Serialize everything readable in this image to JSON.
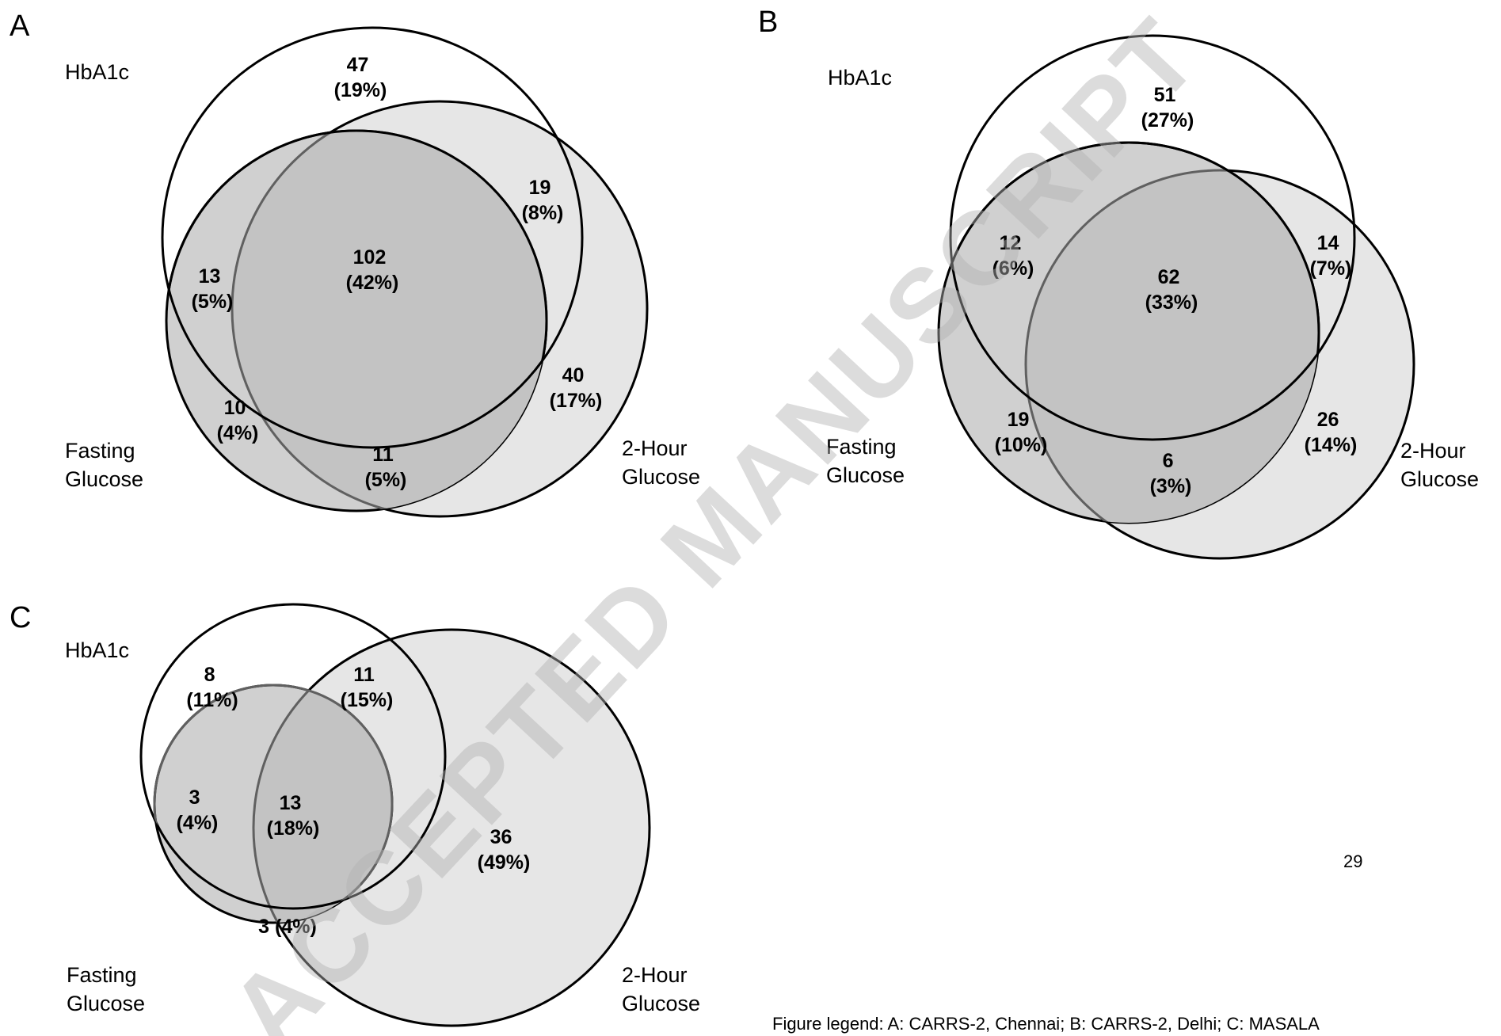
{
  "watermark": "ACCEPTED MANUSCRIPT",
  "page_number": "29",
  "legend": "Figure legend:  A: CARRS-2, Chennai; B:  CARRS-2, Delhi; C: MASALA",
  "colors": {
    "outline": "#000000",
    "fasting_fill": "#d0d0d0",
    "twohour_fill": "#e6e6e6",
    "overlap_fill": "#c3c3c3",
    "watermark": "#b3b3b3"
  },
  "panels": [
    {
      "letter": "A",
      "labels": {
        "hba1c": "HbA1c",
        "fasting": [
          "Fasting",
          "Glucose"
        ],
        "twohour": [
          "2-Hour",
          "Glucose"
        ]
      },
      "regions": {
        "hba1c_only": {
          "n": "47",
          "pct": "(19%)"
        },
        "hba1c_2h": {
          "n": "19",
          "pct": "(8%)"
        },
        "hba1c_fast": {
          "n": "13",
          "pct": "(5%)"
        },
        "all_three": {
          "n": "102",
          "pct": "(42%)"
        },
        "twohour_only": {
          "n": "40",
          "pct": "(17%)"
        },
        "fasting_only": {
          "n": "10",
          "pct": "(4%)"
        },
        "fast_2h": {
          "n": "11",
          "pct": "(5%)"
        }
      }
    },
    {
      "letter": "B",
      "labels": {
        "hba1c": "HbA1c",
        "fasting": [
          "Fasting",
          "Glucose"
        ],
        "twohour": [
          "2-Hour",
          "Glucose"
        ]
      },
      "regions": {
        "hba1c_only": {
          "n": "51",
          "pct": "(27%)"
        },
        "hba1c_fast": {
          "n": "12",
          "pct": "(6%)"
        },
        "hba1c_2h": {
          "n": "14",
          "pct": "(7%)"
        },
        "all_three": {
          "n": "62",
          "pct": "(33%)"
        },
        "fasting_only": {
          "n": "19",
          "pct": "(10%)"
        },
        "twohour_only": {
          "n": "26",
          "pct": "(14%)"
        },
        "fast_2h": {
          "n": "6",
          "pct": "(3%)"
        }
      }
    },
    {
      "letter": "C",
      "labels": {
        "hba1c": "HbA1c",
        "fasting": [
          "Fasting",
          "Glucose"
        ],
        "twohour": [
          "2-Hour",
          "Glucose"
        ]
      },
      "regions": {
        "hba1c_only": {
          "n": "8",
          "pct": "(11%)"
        },
        "hba1c_2h": {
          "n": "11",
          "pct": "(15%)"
        },
        "hba1c_fast": {
          "n": "3",
          "pct": "(4%)"
        },
        "all_three": {
          "n": "13",
          "pct": "(18%)"
        },
        "twohour_only": {
          "n": "36",
          "pct": "(49%)"
        },
        "fast_2h": {
          "text": "3 (4%)"
        }
      }
    }
  ]
}
